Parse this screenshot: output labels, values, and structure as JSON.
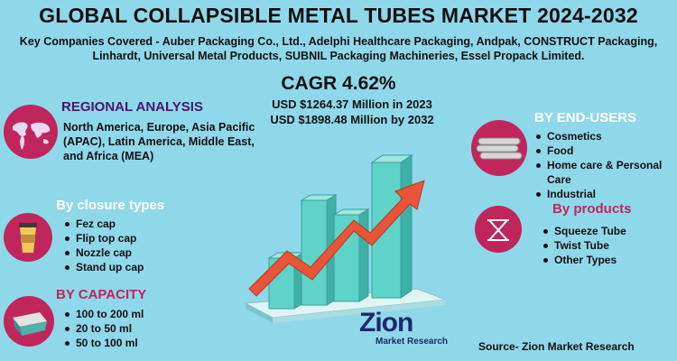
{
  "title": "GLOBAL COLLAPSIBLE METAL TUBES MARKET 2024-2032",
  "companies": "Key Companies Covered -  Auber Packaging Co., Ltd., Adelphi Healthcare Packaging, Andpak, CONSTRUCT Packaging, Linhardt, Universal Metal Products, SUBNIL Packaging Machineries, Essel Propack Limited.",
  "cagr": "CAGR 4.62%",
  "usd_2023": "USD $1264.37 Million  in 2023",
  "usd_2032": "USD $1898.48 Million  by 2032",
  "regional": {
    "heading": "REGIONAL ANALYSIS",
    "text": "North America, Europe, Asia Pacific (APAC), Latin America, Middle East, and Africa (MEA)"
  },
  "closure": {
    "heading": "By closure types",
    "items": [
      "Fez cap",
      "Flip top cap",
      "Nozzle cap",
      "Stand up cap"
    ]
  },
  "capacity": {
    "heading": "BY CAPACITY",
    "items": [
      "100 to 200 ml",
      "20 to 50 ml",
      "50 to 100 ml"
    ]
  },
  "end_users": {
    "heading": "BY END-USERS",
    "items": [
      "Cosmetics",
      "Food",
      "Home care & Personal Care",
      "Industrial"
    ]
  },
  "products": {
    "heading": "By products",
    "items": [
      "Squeeze Tube",
      "Twist Tube",
      "Other Types"
    ]
  },
  "logo": {
    "name": "Zion",
    "sub": "Market Research"
  },
  "source": "Source- Zion Market Research",
  "colors": {
    "background": "#8fd8ea",
    "circle": "#c0265b",
    "bar": "#5fd3c8",
    "arrow": "#e8553a"
  }
}
